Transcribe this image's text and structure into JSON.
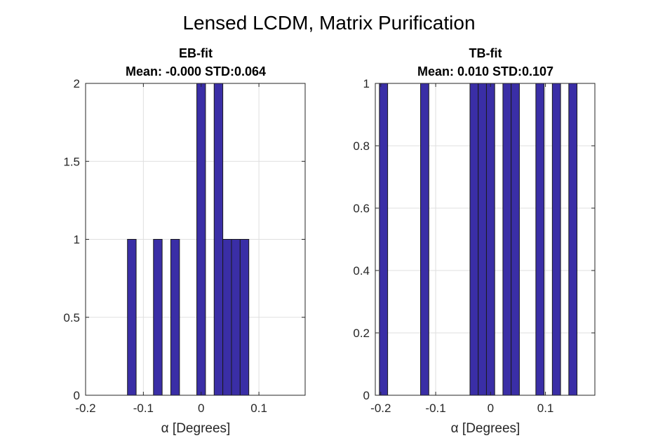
{
  "figure_title": "Lensed LCDM, Matrix Purification",
  "chart_data": [
    {
      "type": "bar",
      "title": "EB-fit",
      "subtitle": "Mean: -0.000 STD:0.064",
      "xlabel": "α [Degrees]",
      "ylabel": "",
      "xlim": [
        -0.2,
        0.18
      ],
      "ylim": [
        0,
        2
      ],
      "xticks": [
        -0.2,
        -0.1,
        0,
        0.1
      ],
      "xtick_labels": [
        "-0.2",
        "-0.1",
        "0",
        "0.1"
      ],
      "yticks": [
        0,
        0.5,
        1,
        1.5,
        2
      ],
      "ytick_labels": [
        "0",
        "0.5",
        "1",
        "1.5",
        "2"
      ],
      "grid": true,
      "bin_width": 0.015,
      "bins": [
        {
          "x": -0.12,
          "count": 1
        },
        {
          "x": -0.075,
          "count": 1
        },
        {
          "x": -0.045,
          "count": 1
        },
        {
          "x": 0.0,
          "count": 2
        },
        {
          "x": 0.03,
          "count": 2
        },
        {
          "x": 0.045,
          "count": 1
        },
        {
          "x": 0.06,
          "count": 1
        },
        {
          "x": 0.075,
          "count": 1
        }
      ],
      "color": "#3a2ea6"
    },
    {
      "type": "bar",
      "title": "TB-fit",
      "subtitle": "Mean: 0.010 STD:0.107",
      "xlabel": "α [Degrees]",
      "ylabel": "",
      "xlim": [
        -0.21,
        0.19
      ],
      "ylim": [
        0,
        1
      ],
      "xticks": [
        -0.2,
        -0.1,
        0,
        0.1
      ],
      "xtick_labels": [
        "-0.2",
        "-0.1",
        "0",
        "0.1"
      ],
      "yticks": [
        0,
        0.2,
        0.4,
        0.6,
        0.8,
        1
      ],
      "ytick_labels": [
        "0",
        "0.2",
        "0.4",
        "0.6",
        "0.8",
        "1"
      ],
      "grid": true,
      "bin_width": 0.015,
      "bins": [
        {
          "x": -0.195,
          "count": 1
        },
        {
          "x": -0.12,
          "count": 1
        },
        {
          "x": -0.03,
          "count": 1
        },
        {
          "x": -0.015,
          "count": 1
        },
        {
          "x": 0.0,
          "count": 1
        },
        {
          "x": 0.03,
          "count": 1
        },
        {
          "x": 0.045,
          "count": 1
        },
        {
          "x": 0.09,
          "count": 1
        },
        {
          "x": 0.12,
          "count": 1
        },
        {
          "x": 0.15,
          "count": 1
        }
      ],
      "color": "#3a2ea6"
    }
  ]
}
